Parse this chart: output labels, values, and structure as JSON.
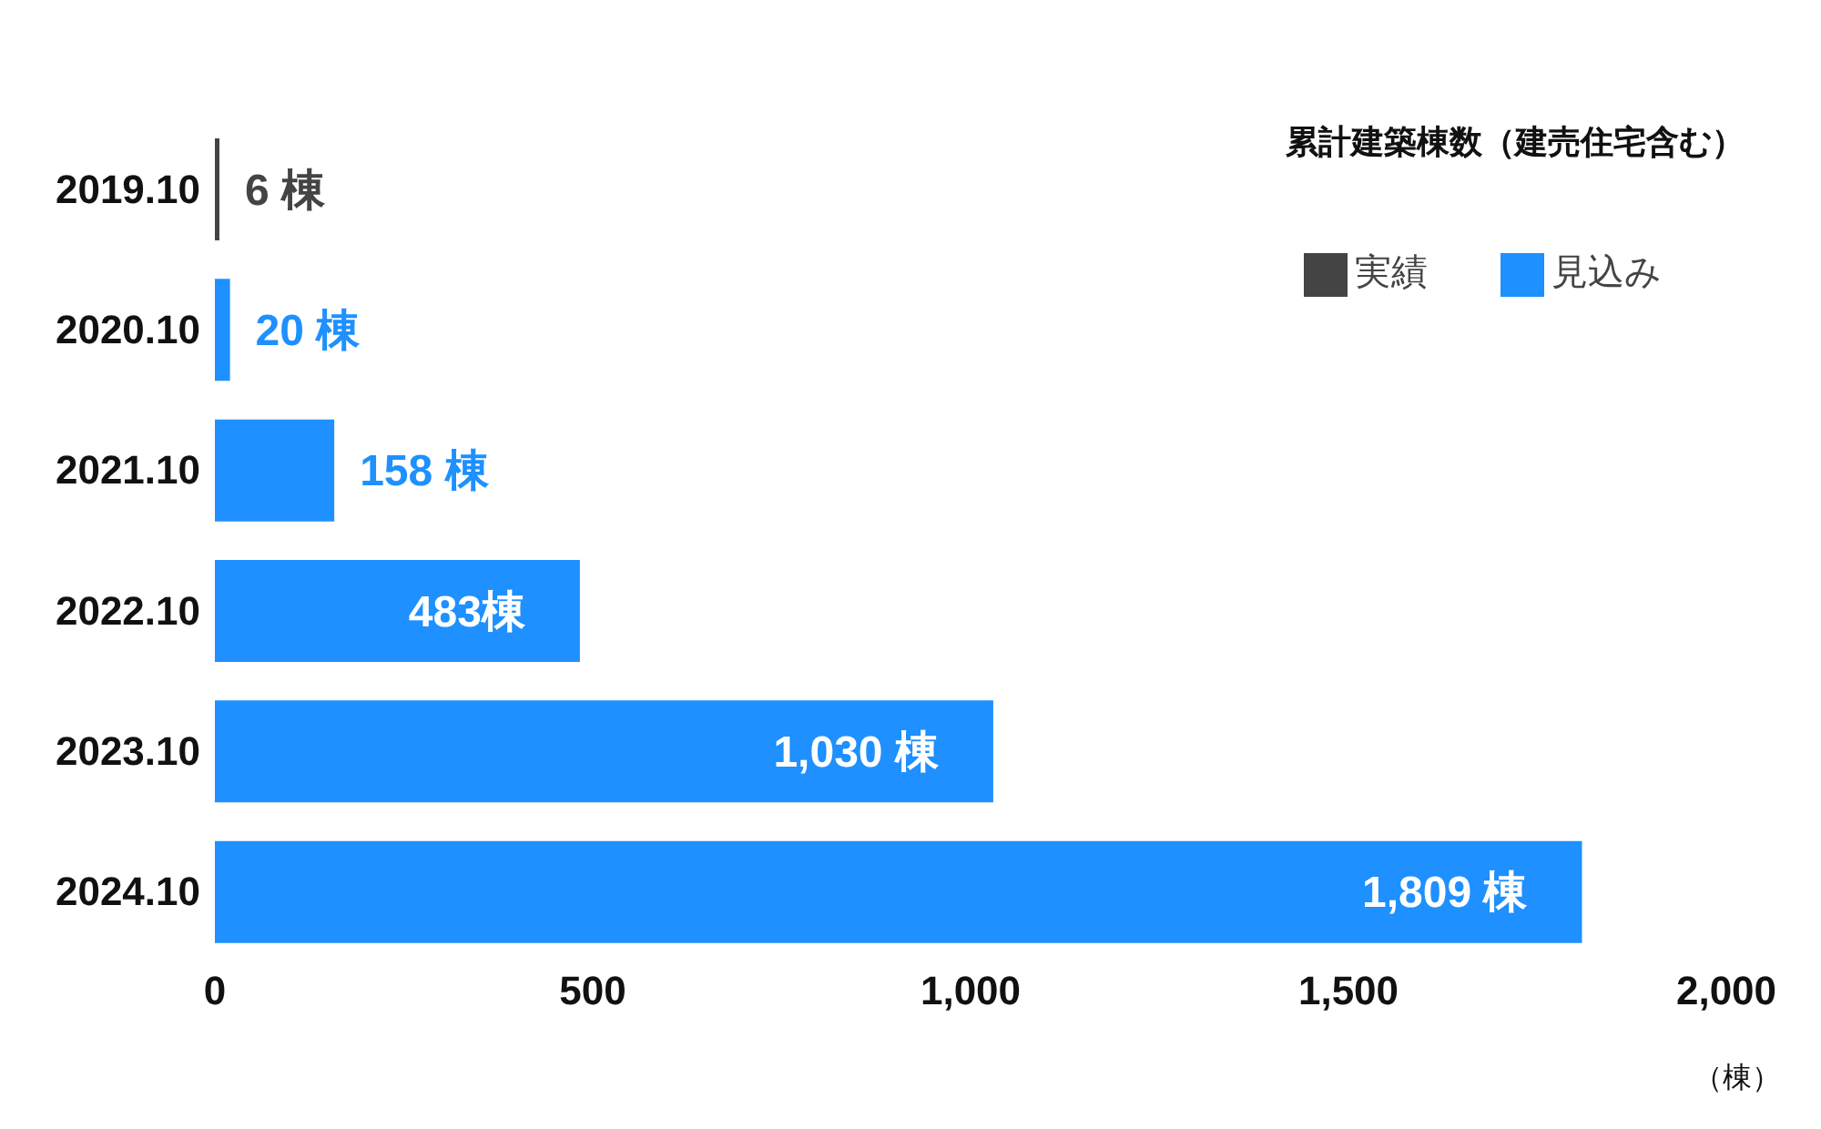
{
  "chart_data": {
    "type": "bar",
    "orientation": "horizontal",
    "stacked": true,
    "title": "累計建築棟数（建売住宅含む）",
    "xlabel": "（棟）",
    "categories": [
      "2019.10",
      "2020.10",
      "2021.10",
      "2022.10",
      "2023.10",
      "2024.10"
    ],
    "series": [
      {
        "name": "実績",
        "color": "#444444",
        "values": [
          6,
          null,
          null,
          null,
          null,
          null
        ],
        "value_labels": [
          "6 棟",
          null,
          null,
          null,
          null,
          null
        ]
      },
      {
        "name": "見込み",
        "color": "#1e90ff",
        "values": [
          null,
          20,
          158,
          483,
          1030,
          1809
        ],
        "value_labels": [
          null,
          "20 棟",
          "158 棟",
          "483棟",
          "1,030 棟",
          "1,809 棟"
        ]
      }
    ],
    "xlim": [
      0,
      2000
    ],
    "xticks": [
      0,
      500,
      {
        "value": 1000,
        "label": "1,000"
      },
      {
        "value": 1500,
        "label": "1,500"
      },
      {
        "value": 2000,
        "label": "2,000"
      }
    ],
    "grid": false,
    "legend": "top right"
  }
}
